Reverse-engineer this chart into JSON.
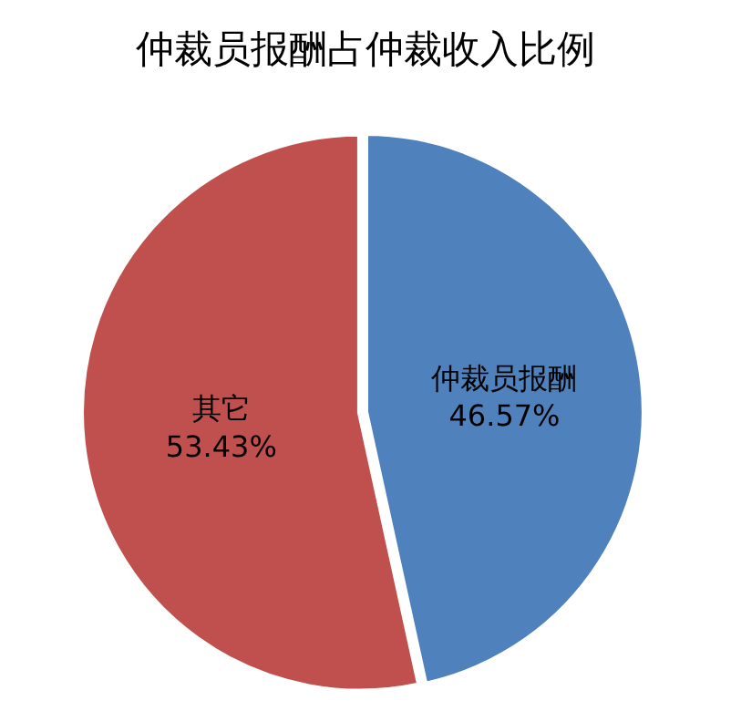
{
  "chart_data": {
    "type": "pie",
    "title": "仲裁员报酬占仲裁收入比例",
    "categories": [
      "仲裁员报酬",
      "其它"
    ],
    "values": [
      46.57,
      53.43
    ],
    "value_labels": [
      "46.57%",
      "53.43%"
    ],
    "colors": [
      "#4f81bd",
      "#c0504d"
    ],
    "legend": false
  }
}
